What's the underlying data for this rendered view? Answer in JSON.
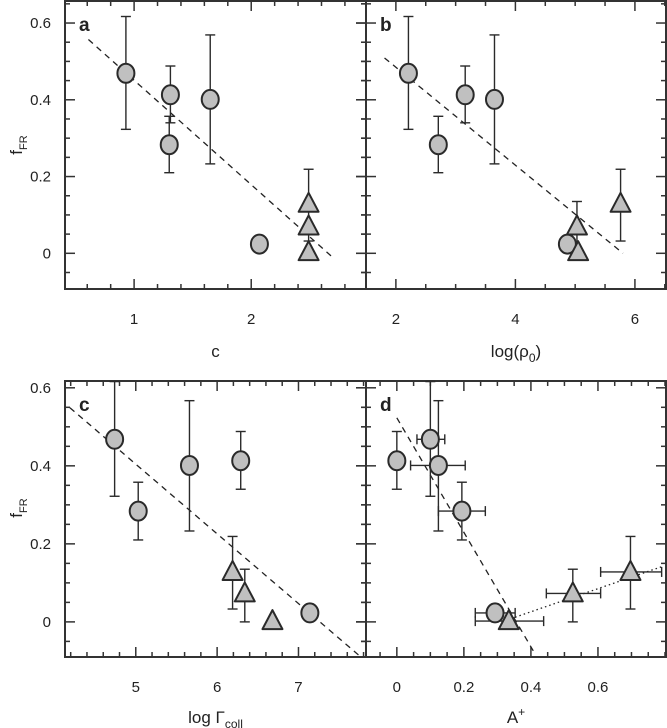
{
  "colors": {
    "marker_fill": "#c0c0c0",
    "marker_stroke": "#2a2a2a",
    "axis": "#333333",
    "fit_line": "#222222"
  },
  "chart_data": [
    {
      "type": "scatter",
      "panel_label": "a",
      "xlabel": {
        "main": "c",
        "sub": "",
        "sup": "",
        "after": ""
      },
      "ylabel": {
        "main": "f",
        "sub": "FR"
      },
      "xlim": [
        0.41,
        2.98
      ],
      "ylim": [
        -0.093,
        0.66
      ],
      "xticks": [
        1,
        2
      ],
      "xtick_labels": [
        "1",
        "2"
      ],
      "x_minor_step": 0.2,
      "yticks": [
        0,
        0.2,
        0.4,
        0.6
      ],
      "ytick_labels": [
        "0",
        "0.2",
        "0.4",
        "0.6"
      ],
      "y_minor_step": 0.05,
      "grid": false,
      "points": [
        {
          "marker": "circle",
          "x": 0.93,
          "y": 0.469,
          "y_err": [
            0.323,
            0.617
          ]
        },
        {
          "marker": "circle",
          "x": 1.31,
          "y": 0.413,
          "y_err": [
            0.34,
            0.488
          ]
        },
        {
          "marker": "circle",
          "x": 1.3,
          "y": 0.283,
          "y_err": [
            0.21,
            0.357
          ]
        },
        {
          "marker": "circle",
          "x": 1.65,
          "y": 0.401,
          "y_err": [
            0.233,
            0.569
          ]
        },
        {
          "marker": "circle",
          "x": 2.07,
          "y": 0.024,
          "y_err": [
            0.012,
            0.036
          ]
        },
        {
          "marker": "triangle",
          "x": 2.49,
          "y": 0.129,
          "y_err": [
            0.032,
            0.219
          ]
        },
        {
          "marker": "triangle",
          "x": 2.49,
          "y": 0.07
        },
        {
          "marker": "triangle",
          "x": 2.49,
          "y": 0.003
        }
      ],
      "fits": [
        {
          "style": "dashed",
          "x": [
            0.61,
            2.69
          ],
          "y": [
            0.557,
            -0.009
          ]
        }
      ]
    },
    {
      "type": "scatter",
      "panel_label": "b",
      "xlabel": {
        "main": "log(ρ",
        "sub": "0",
        "sup": "",
        "after": ")"
      },
      "ylabel": null,
      "xlim": [
        1.5,
        6.52
      ],
      "ylim": [
        -0.093,
        0.66
      ],
      "xticks": [
        2,
        4,
        6
      ],
      "xtick_labels": [
        "2",
        "4",
        "6"
      ],
      "x_minor_step": 0.5,
      "yticks": [
        0,
        0.2,
        0.4,
        0.6
      ],
      "ytick_labels": [],
      "y_minor_step": 0.05,
      "grid": false,
      "points": [
        {
          "marker": "circle",
          "x": 2.21,
          "y": 0.469,
          "y_err": [
            0.323,
            0.617
          ]
        },
        {
          "marker": "circle",
          "x": 2.71,
          "y": 0.283,
          "y_err": [
            0.21,
            0.357
          ]
        },
        {
          "marker": "circle",
          "x": 3.16,
          "y": 0.413,
          "y_err": [
            0.34,
            0.488
          ]
        },
        {
          "marker": "circle",
          "x": 3.65,
          "y": 0.401,
          "y_err": [
            0.233,
            0.569
          ]
        },
        {
          "marker": "circle",
          "x": 4.87,
          "y": 0.024
        },
        {
          "marker": "triangle",
          "x": 5.03,
          "y": 0.07,
          "y_err": [
            0.0,
            0.135
          ]
        },
        {
          "marker": "triangle",
          "x": 5.05,
          "y": 0.003
        },
        {
          "marker": "triangle",
          "x": 5.76,
          "y": 0.129,
          "y_err": [
            0.032,
            0.219
          ]
        }
      ],
      "fits": [
        {
          "style": "dashed",
          "x": [
            1.81,
            5.8
          ],
          "y": [
            0.509,
            0.0
          ]
        }
      ]
    },
    {
      "type": "scatter",
      "panel_label": "c",
      "xlabel": {
        "main": "log Γ",
        "sub": "coll",
        "sup": "",
        "after": ""
      },
      "ylabel": {
        "main": "f",
        "sub": "FR"
      },
      "xlim": [
        4.13,
        7.83
      ],
      "ylim": [
        -0.09,
        0.62
      ],
      "xticks": [
        5,
        6,
        7
      ],
      "xtick_labels": [
        "5",
        "6",
        "7"
      ],
      "x_minor_step": 0.2,
      "yticks": [
        0,
        0.2,
        0.4,
        0.6
      ],
      "ytick_labels": [
        "0",
        "0.2",
        "0.4",
        "0.6"
      ],
      "y_minor_step": 0.05,
      "grid": false,
      "points": [
        {
          "marker": "circle",
          "x": 4.74,
          "y": 0.468,
          "y_err": [
            0.322,
            0.616
          ]
        },
        {
          "marker": "circle",
          "x": 5.03,
          "y": 0.284,
          "y_err": [
            0.21,
            0.358
          ]
        },
        {
          "marker": "circle",
          "x": 5.66,
          "y": 0.401,
          "y_err": [
            0.233,
            0.567
          ]
        },
        {
          "marker": "circle",
          "x": 6.29,
          "y": 0.413,
          "y_err": [
            0.34,
            0.488
          ]
        },
        {
          "marker": "circle",
          "x": 7.14,
          "y": 0.023
        },
        {
          "marker": "triangle",
          "x": 6.19,
          "y": 0.128,
          "y_err": [
            0.033,
            0.219
          ]
        },
        {
          "marker": "triangle",
          "x": 6.34,
          "y": 0.073,
          "y_err": [
            0.0,
            0.135
          ]
        },
        {
          "marker": "triangle",
          "x": 6.68,
          "y": 0.002
        }
      ],
      "fits": [
        {
          "style": "dashed",
          "x": [
            4.19,
            7.75
          ],
          "y": [
            0.549,
            -0.087
          ]
        }
      ]
    },
    {
      "type": "scatter",
      "panel_label": "d",
      "xlabel": {
        "main": "A",
        "sub": "",
        "sup": "+",
        "after": ""
      },
      "ylabel": null,
      "xlim": [
        -0.092,
        0.803
      ],
      "ylim": [
        -0.09,
        0.62
      ],
      "xticks": [
        0,
        0.2,
        0.4,
        0.6
      ],
      "xtick_labels": [
        "0",
        "0.2",
        "0.4",
        "0.6"
      ],
      "x_minor_step": 0.05,
      "yticks": [
        0,
        0.2,
        0.4,
        0.6
      ],
      "ytick_labels": [],
      "y_minor_step": 0.05,
      "grid": false,
      "points": [
        {
          "marker": "circle",
          "x": 0.1,
          "y": 0.468,
          "y_err": [
            0.322,
            0.616
          ],
          "x_err": [
            0.06,
            0.143
          ]
        },
        {
          "marker": "circle",
          "x": 0.0,
          "y": 0.413,
          "y_err": [
            0.34,
            0.488
          ]
        },
        {
          "marker": "circle",
          "x": 0.124,
          "y": 0.401,
          "y_err": [
            0.233,
            0.567
          ],
          "x_err": [
            0.041,
            0.204
          ]
        },
        {
          "marker": "circle",
          "x": 0.194,
          "y": 0.284,
          "y_err": [
            0.21,
            0.358
          ],
          "x_err": [
            0.124,
            0.264
          ]
        },
        {
          "marker": "circle",
          "x": 0.293,
          "y": 0.023,
          "x_err": [
            0.234,
            0.353
          ]
        },
        {
          "marker": "triangle",
          "x": 0.334,
          "y": 0.002,
          "x_err": [
            0.234,
            0.438
          ]
        },
        {
          "marker": "triangle",
          "x": 0.525,
          "y": 0.073,
          "y_err": [
            0.0,
            0.135
          ],
          "x_err": [
            0.446,
            0.608
          ]
        },
        {
          "marker": "triangle",
          "x": 0.697,
          "y": 0.128,
          "y_err": [
            0.033,
            0.219
          ],
          "x_err": [
            0.608,
            0.79
          ]
        }
      ],
      "fits": [
        {
          "style": "dashed",
          "x": [
            0.0,
            0.413
          ],
          "y": [
            0.523,
            -0.083
          ]
        },
        {
          "style": "dotted",
          "x": [
            0.353,
            0.792
          ],
          "y": [
            0.012,
            0.142
          ]
        }
      ]
    }
  ]
}
